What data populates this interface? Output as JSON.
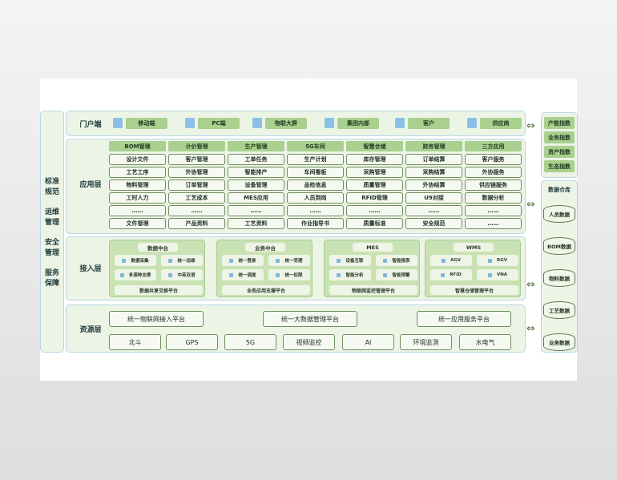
{
  "left": [
    "标准规范",
    "运维管理",
    "安全管理",
    "服务保障"
  ],
  "portal": {
    "label": "门户端",
    "items": [
      {
        "icon": "tablet-icon",
        "text": "移动端"
      },
      {
        "icon": "monitor-icon",
        "text": "PC端"
      },
      {
        "icon": "screen-icon",
        "text": "物联大屏"
      },
      {
        "icon": "building-icon",
        "text": "集团内部"
      },
      {
        "icon": "user-icon",
        "text": "客户"
      },
      {
        "icon": "supplier-icon",
        "text": "供应商"
      }
    ]
  },
  "app": {
    "label": "应用层",
    "columns": [
      {
        "head": "BOM管理",
        "items": [
          "设计文件",
          "工艺工序",
          "物料管理",
          "工时人力",
          "……",
          "文件管理"
        ]
      },
      {
        "head": "计价管理",
        "items": [
          "客户管理",
          "外协管理",
          "订单管理",
          "工艺成本",
          "……",
          "产品资料"
        ]
      },
      {
        "head": "生产管理",
        "items": [
          "工单任务",
          "智能排产",
          "设备管理",
          "MES应用",
          "……",
          "工艺资料"
        ]
      },
      {
        "head": "5G车间",
        "items": [
          "生产计划",
          "车间看板",
          "品检信息",
          "人员到岗",
          "……",
          "作业指导书"
        ]
      },
      {
        "head": "智慧仓储",
        "items": [
          "库存管理",
          "采购管理",
          "质量管理",
          "RFID管理",
          "……",
          "质量标准"
        ]
      },
      {
        "head": "财务管理",
        "items": [
          "订单结算",
          "采购结算",
          "外协结算",
          "U9对接",
          "……",
          "安全规范"
        ]
      },
      {
        "head": "三方应用",
        "items": [
          "客户服务",
          "外协服务",
          "供应链服务",
          "数据分析",
          "……",
          "……"
        ]
      }
    ]
  },
  "access": {
    "label": "接入层",
    "groups": [
      {
        "title": "数据中台",
        "items": [
          "数据采集",
          "统一运维",
          "多源种支撑",
          "中英双语"
        ],
        "footer": "数据共享交换平台"
      },
      {
        "title": "业务中台",
        "items": [
          "统一登录",
          "统一受理",
          "统一调度",
          "统一权限"
        ],
        "footer": "业务应用支撑平台"
      },
      {
        "title": "MES",
        "items": [
          "设备互联",
          "智能报表",
          "智能分析",
          "智能预警"
        ],
        "footer": "物联网监控管理平台"
      },
      {
        "title": "WMS",
        "items": [
          "AGV",
          "RGV",
          "RFID",
          "VNA"
        ],
        "footer": "智慧仓储管理平台"
      }
    ]
  },
  "resource": {
    "label": "资源层",
    "platforms": [
      "统一物联网接入平台",
      "统一大数据管理平台",
      "统一应用服务平台"
    ],
    "items": [
      "北斗",
      "GPS",
      "5G",
      "视频监控",
      "AI",
      "环境监测",
      "水电气"
    ]
  },
  "indices": [
    "产能指数",
    "业务指数",
    "资产指数",
    "生态指数"
  ],
  "warehouse": {
    "title": "数据仓库",
    "items": [
      "人员数据",
      "BOM数据",
      "物料数据",
      "工艺数据",
      "业务数据"
    ]
  },
  "arrow": "⇔"
}
